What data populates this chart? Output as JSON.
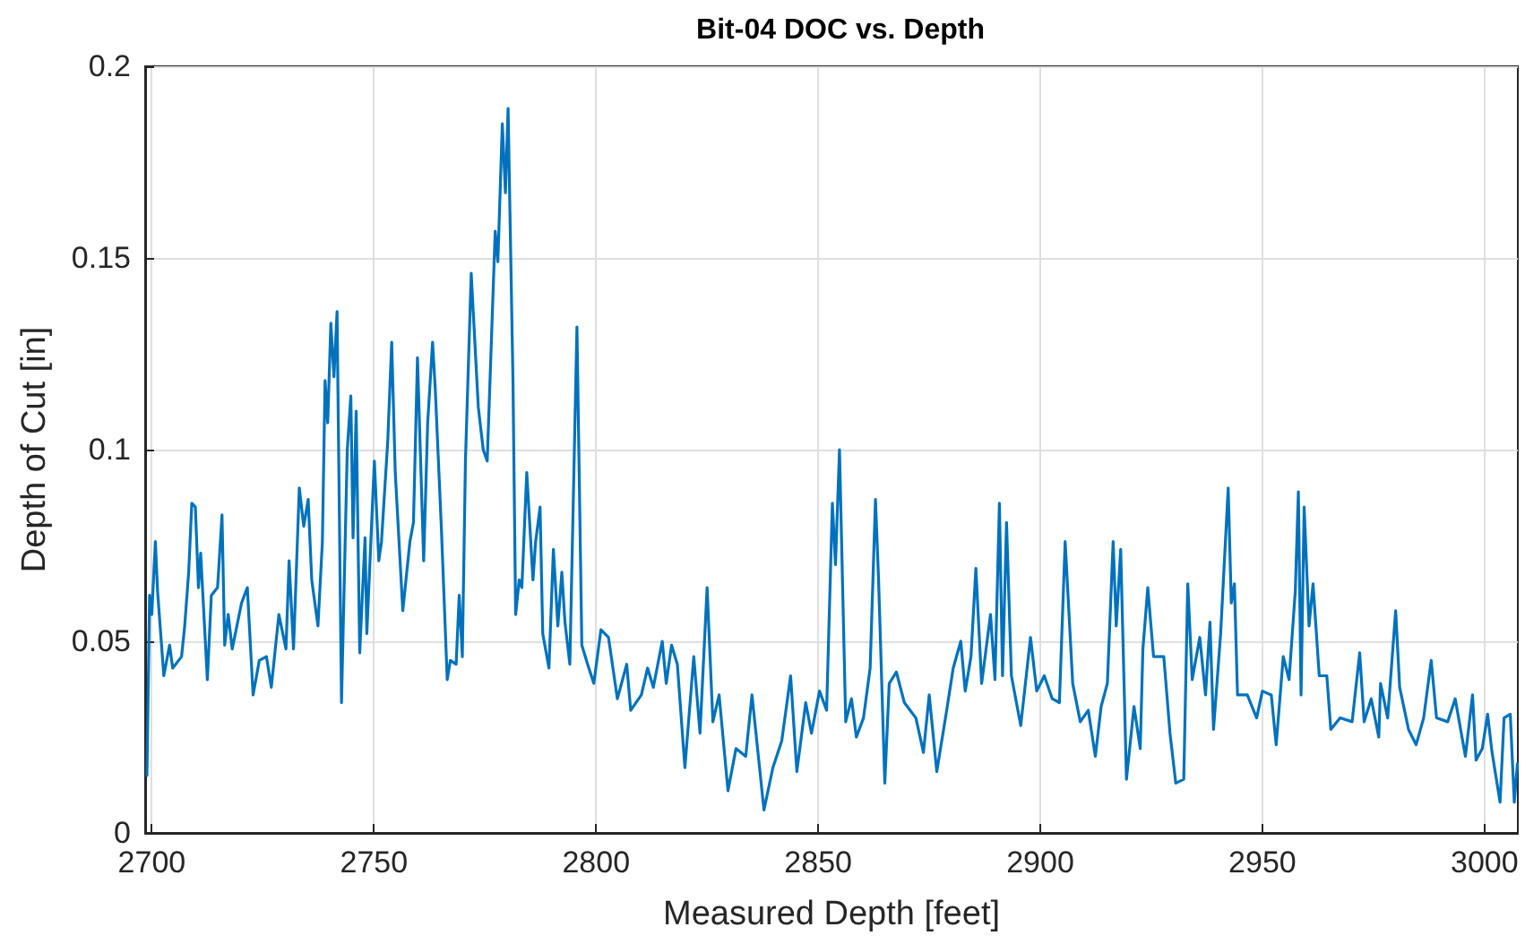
{
  "chart_data": {
    "type": "line",
    "title": "Bit-04 DOC vs. Depth",
    "xlabel": "Measured Depth [feet]",
    "ylabel": "Depth of Cut [in]",
    "xlim": [
      2698.5,
      3007.5
    ],
    "xticks": [
      2700,
      2750,
      2800,
      2850,
      2900,
      2950,
      3000
    ],
    "ylim": [
      0,
      0.2
    ],
    "yticks": [
      0,
      0.05,
      0.1,
      0.15,
      0.2
    ],
    "grid": true,
    "marker": "none",
    "line_style": "solid",
    "series": [
      {
        "color": "#0072bd",
        "x": [
          2698.9,
          2699.5,
          2700,
          2700.8,
          2701.3,
          2702.7,
          2704,
          2704.7,
          2706.7,
          2707.4,
          2708.3,
          2709,
          2709.8,
          2710.5,
          2711,
          2712.5,
          2713.4,
          2714.8,
          2715.8,
          2716.4,
          2717.2,
          2718.1,
          2720.2,
          2721.5,
          2722.8,
          2724.2,
          2725.8,
          2726.9,
          2728.6,
          2730.2,
          2730.9,
          2731.9,
          2733.2,
          2734.2,
          2735.2,
          2736,
          2737.4,
          2738.4,
          2739,
          2739.6,
          2740.3,
          2741,
          2741.7,
          2742.7,
          2744,
          2744.8,
          2745.3,
          2746,
          2746.8,
          2748,
          2748.4,
          2750.1,
          2751.1,
          2751.7,
          2753.1,
          2754,
          2754.8,
          2756.5,
          2758.1,
          2758.9,
          2759.8,
          2761.2,
          2762.1,
          2763.2,
          2763.8,
          2765.2,
          2766.5,
          2767.2,
          2768.5,
          2769.2,
          2769.9,
          2770.6,
          2771.9,
          2773.5,
          2774.6,
          2775.5,
          2777.3,
          2777.9,
          2778.9,
          2779.6,
          2780.2,
          2781.3,
          2781.9,
          2782.7,
          2783.3,
          2784.4,
          2785.8,
          2786.4,
          2787.4,
          2788,
          2789.4,
          2790.4,
          2791.4,
          2792.3,
          2793,
          2794.1,
          2795.7,
          2796.8,
          2798.1,
          2799.5,
          2801.1,
          2802.8,
          2804.8,
          2806.9,
          2807.8,
          2810.2,
          2811.6,
          2812.9,
          2814.9,
          2815.8,
          2817,
          2818.3,
          2820,
          2822,
          2823.4,
          2825,
          2826.3,
          2827.7,
          2829.7,
          2831.5,
          2833.7,
          2835.1,
          2837.8,
          2839.8,
          2841.8,
          2843.8,
          2845.2,
          2847.2,
          2848.5,
          2850.3,
          2851.9,
          2853.2,
          2853.9,
          2854.8,
          2856.2,
          2857.5,
          2858.6,
          2860.2,
          2861.7,
          2862.9,
          2863.6,
          2865,
          2866,
          2867.6,
          2869.4,
          2872,
          2873.7,
          2875,
          2876.7,
          2878.8,
          2880.4,
          2882.1,
          2883.1,
          2884.4,
          2885.5,
          2886.8,
          2888.8,
          2889.8,
          2890.8,
          2891.5,
          2892.4,
          2893.5,
          2895.6,
          2897.8,
          2899.2,
          2900.9,
          2902.7,
          2904.3,
          2905.6,
          2907.3,
          2909,
          2910.8,
          2912.4,
          2913.7,
          2915.1,
          2916.4,
          2917.1,
          2918.1,
          2919.4,
          2921.1,
          2922.5,
          2923.1,
          2924.2,
          2925.5,
          2927.8,
          2929.2,
          2930.5,
          2932.3,
          2933.2,
          2934.2,
          2935.9,
          2937.2,
          2938.2,
          2939,
          2940.6,
          2942.3,
          2943,
          2943.7,
          2944.4,
          2946.6,
          2948.7,
          2950,
          2952,
          2953.1,
          2954.7,
          2956,
          2957.4,
          2958.1,
          2958.7,
          2959.4,
          2960.5,
          2961.4,
          2962.8,
          2964.5,
          2965.4,
          2967.5,
          2970.2,
          2971.9,
          2972.9,
          2974.5,
          2976.2,
          2976.6,
          2978.2,
          2980,
          2980.9,
          2982.9,
          2984.6,
          2986.3,
          2988,
          2989.2,
          2991.7,
          2993.4,
          2995.7,
          2997.3,
          2998.1,
          2999.5,
          3000.7,
          3001.7,
          3003.5,
          3004.4,
          3005.8,
          3006.7,
          3007.4
        ],
        "values": [
          0.015,
          0.062,
          0.057,
          0.076,
          0.063,
          0.041,
          0.049,
          0.043,
          0.046,
          0.054,
          0.068,
          0.086,
          0.085,
          0.064,
          0.073,
          0.04,
          0.062,
          0.064,
          0.083,
          0.049,
          0.057,
          0.048,
          0.06,
          0.064,
          0.036,
          0.045,
          0.046,
          0.038,
          0.057,
          0.048,
          0.071,
          0.048,
          0.09,
          0.08,
          0.087,
          0.066,
          0.054,
          0.076,
          0.118,
          0.107,
          0.133,
          0.119,
          0.136,
          0.034,
          0.1,
          0.114,
          0.077,
          0.11,
          0.047,
          0.077,
          0.052,
          0.097,
          0.071,
          0.076,
          0.102,
          0.128,
          0.094,
          0.058,
          0.076,
          0.081,
          0.124,
          0.071,
          0.107,
          0.128,
          0.116,
          0.079,
          0.04,
          0.045,
          0.044,
          0.062,
          0.046,
          0.097,
          0.146,
          0.111,
          0.1,
          0.097,
          0.157,
          0.149,
          0.185,
          0.167,
          0.189,
          0.118,
          0.057,
          0.066,
          0.064,
          0.094,
          0.066,
          0.076,
          0.085,
          0.052,
          0.043,
          0.074,
          0.054,
          0.068,
          0.055,
          0.044,
          0.132,
          0.049,
          0.044,
          0.039,
          0.053,
          0.051,
          0.035,
          0.044,
          0.032,
          0.036,
          0.043,
          0.038,
          0.05,
          0.039,
          0.049,
          0.044,
          0.017,
          0.046,
          0.026,
          0.064,
          0.029,
          0.036,
          0.011,
          0.022,
          0.02,
          0.036,
          0.006,
          0.017,
          0.024,
          0.041,
          0.016,
          0.034,
          0.026,
          0.037,
          0.032,
          0.086,
          0.07,
          0.1,
          0.029,
          0.035,
          0.025,
          0.03,
          0.043,
          0.087,
          0.066,
          0.013,
          0.039,
          0.042,
          0.034,
          0.03,
          0.021,
          0.036,
          0.016,
          0.031,
          0.043,
          0.05,
          0.037,
          0.046,
          0.069,
          0.039,
          0.057,
          0.04,
          0.086,
          0.041,
          0.081,
          0.041,
          0.028,
          0.051,
          0.037,
          0.041,
          0.035,
          0.034,
          0.076,
          0.039,
          0.029,
          0.032,
          0.02,
          0.033,
          0.039,
          0.076,
          0.054,
          0.074,
          0.014,
          0.033,
          0.022,
          0.048,
          0.064,
          0.046,
          0.046,
          0.026,
          0.013,
          0.014,
          0.065,
          0.04,
          0.051,
          0.036,
          0.055,
          0.027,
          0.052,
          0.09,
          0.06,
          0.065,
          0.036,
          0.036,
          0.03,
          0.037,
          0.036,
          0.023,
          0.046,
          0.04,
          0.063,
          0.089,
          0.036,
          0.085,
          0.054,
          0.065,
          0.041,
          0.041,
          0.027,
          0.03,
          0.029,
          0.047,
          0.029,
          0.035,
          0.025,
          0.039,
          0.03,
          0.058,
          0.038,
          0.027,
          0.023,
          0.03,
          0.045,
          0.03,
          0.029,
          0.035,
          0.02,
          0.036,
          0.019,
          0.022,
          0.031,
          0.021,
          0.008,
          0.03,
          0.031,
          0.008,
          0.018
        ]
      }
    ]
  }
}
